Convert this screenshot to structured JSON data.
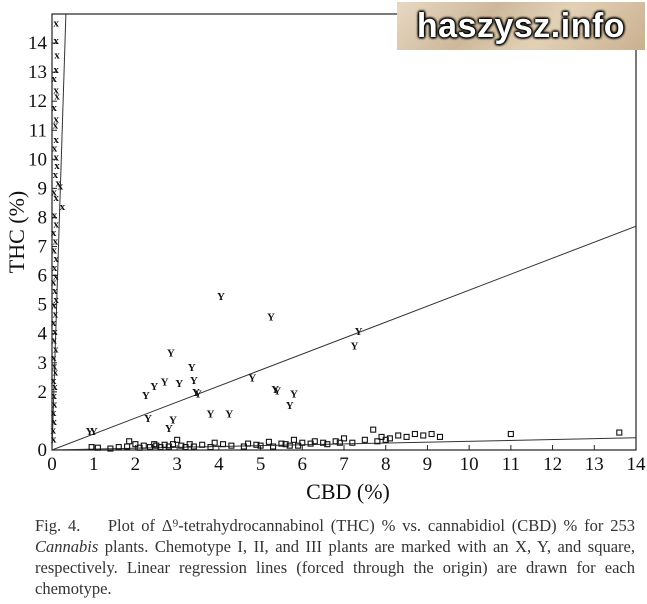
{
  "watermark": {
    "text": "haszysz.info"
  },
  "caption": {
    "label": "Fig. 4.",
    "part1": "Plot of Δ⁹-tetrahydrocannabinol (THC) % vs. cannabidiol (CBD) % for 253 ",
    "italic": "Cannabis",
    "part2": " plants. Chemotype I, II, and III plants are marked with an X, Y, and square, respectively. Linear regression lines (forced through the origin) are drawn for each chemotype."
  },
  "chart_data": {
    "type": "scatter",
    "xlabel": "CBD (%)",
    "ylabel": "THC (%)",
    "xlim": [
      0,
      14
    ],
    "ylim": [
      0,
      15
    ],
    "x_ticks": [
      "0",
      "1",
      "2",
      "3",
      "4",
      "5",
      "6",
      "7",
      "8",
      "9",
      "10",
      "11",
      "12",
      "13",
      "14"
    ],
    "y_ticks": [
      "0",
      "2",
      "3",
      "4",
      "5",
      "6",
      "7",
      "8",
      "9",
      "10",
      "11",
      "12",
      "13",
      "14"
    ],
    "grid": false,
    "series": [
      {
        "marker": "X",
        "slope": 45,
        "points": [
          [
            0.1,
            14.7
          ],
          [
            0.1,
            14.1
          ],
          [
            0.12,
            13.6
          ],
          [
            0.1,
            13.1
          ],
          [
            0.05,
            12.8
          ],
          [
            0.1,
            12.4
          ],
          [
            0.12,
            12.2
          ],
          [
            0.05,
            11.8
          ],
          [
            0.1,
            11.4
          ],
          [
            0.08,
            11.2
          ],
          [
            0.1,
            10.7
          ],
          [
            0.06,
            10.4
          ],
          [
            0.1,
            10.1
          ],
          [
            0.12,
            9.8
          ],
          [
            0.08,
            9.5
          ],
          [
            0.15,
            9.2
          ],
          [
            0.2,
            9.1
          ],
          [
            0.05,
            8.9
          ],
          [
            0.1,
            8.7
          ],
          [
            0.25,
            8.4
          ],
          [
            0.06,
            8.1
          ],
          [
            0.1,
            7.8
          ],
          [
            0.04,
            7.5
          ],
          [
            0.08,
            7.2
          ],
          [
            0.05,
            6.9
          ],
          [
            0.1,
            6.6
          ],
          [
            0.06,
            6.3
          ],
          [
            0.09,
            6.0
          ],
          [
            0.04,
            5.8
          ],
          [
            0.07,
            5.5
          ],
          [
            0.1,
            5.2
          ],
          [
            0.05,
            5.0
          ],
          [
            0.08,
            4.7
          ],
          [
            0.04,
            4.4
          ],
          [
            0.07,
            4.1
          ],
          [
            0.05,
            3.8
          ],
          [
            0.09,
            3.5
          ],
          [
            0.04,
            3.2
          ],
          [
            0.06,
            2.9
          ],
          [
            0.08,
            2.7
          ],
          [
            0.04,
            2.4
          ],
          [
            0.07,
            2.2
          ],
          [
            0.05,
            1.9
          ],
          [
            0.06,
            1.6
          ],
          [
            0.04,
            1.3
          ],
          [
            0.05,
            1.0
          ],
          [
            0.03,
            0.7
          ],
          [
            0.04,
            0.4
          ]
        ]
      },
      {
        "marker": "Y",
        "slope": 0.55,
        "points": [
          [
            0.9,
            0.65
          ],
          [
            1.0,
            0.65
          ],
          [
            2.25,
            1.9
          ],
          [
            2.3,
            1.1
          ],
          [
            2.45,
            2.2
          ],
          [
            2.7,
            2.35
          ],
          [
            2.8,
            0.75
          ],
          [
            2.85,
            3.35
          ],
          [
            2.9,
            1.05
          ],
          [
            3.05,
            2.3
          ],
          [
            3.35,
            2.85
          ],
          [
            3.4,
            2.4
          ],
          [
            3.45,
            2.0
          ],
          [
            3.5,
            1.95
          ],
          [
            3.8,
            1.25
          ],
          [
            4.05,
            5.3
          ],
          [
            4.25,
            1.25
          ],
          [
            4.8,
            2.5
          ],
          [
            5.25,
            4.6
          ],
          [
            5.35,
            2.1
          ],
          [
            5.4,
            2.05
          ],
          [
            5.7,
            1.55
          ],
          [
            5.8,
            1.95
          ],
          [
            7.25,
            3.6
          ],
          [
            7.35,
            4.1
          ]
        ]
      },
      {
        "marker": "square",
        "slope": 0.03,
        "points": [
          [
            0.95,
            0.1
          ],
          [
            1.1,
            0.08
          ],
          [
            1.4,
            0.05
          ],
          [
            1.6,
            0.1
          ],
          [
            1.8,
            0.12
          ],
          [
            1.85,
            0.3
          ],
          [
            2.0,
            0.2
          ],
          [
            2.1,
            0.08
          ],
          [
            2.2,
            0.15
          ],
          [
            2.35,
            0.1
          ],
          [
            2.45,
            0.2
          ],
          [
            2.5,
            0.15
          ],
          [
            2.6,
            0.1
          ],
          [
            2.7,
            0.18
          ],
          [
            2.8,
            0.12
          ],
          [
            2.9,
            0.2
          ],
          [
            3.0,
            0.35
          ],
          [
            3.1,
            0.15
          ],
          [
            3.2,
            0.1
          ],
          [
            3.3,
            0.2
          ],
          [
            3.4,
            0.12
          ],
          [
            3.6,
            0.18
          ],
          [
            3.8,
            0.1
          ],
          [
            3.9,
            0.25
          ],
          [
            4.1,
            0.2
          ],
          [
            4.3,
            0.15
          ],
          [
            4.6,
            0.12
          ],
          [
            4.7,
            0.22
          ],
          [
            4.9,
            0.18
          ],
          [
            5.0,
            0.15
          ],
          [
            5.2,
            0.28
          ],
          [
            5.3,
            0.12
          ],
          [
            5.5,
            0.22
          ],
          [
            5.6,
            0.2
          ],
          [
            5.7,
            0.15
          ],
          [
            5.8,
            0.35
          ],
          [
            5.9,
            0.15
          ],
          [
            6.0,
            0.25
          ],
          [
            6.2,
            0.22
          ],
          [
            6.3,
            0.3
          ],
          [
            6.5,
            0.25
          ],
          [
            6.6,
            0.2
          ],
          [
            6.8,
            0.3
          ],
          [
            6.9,
            0.25
          ],
          [
            7.0,
            0.4
          ],
          [
            7.2,
            0.25
          ],
          [
            7.5,
            0.35
          ],
          [
            7.7,
            0.7
          ],
          [
            7.8,
            0.3
          ],
          [
            7.9,
            0.45
          ],
          [
            8.0,
            0.35
          ],
          [
            8.1,
            0.4
          ],
          [
            8.3,
            0.5
          ],
          [
            8.5,
            0.45
          ],
          [
            8.7,
            0.55
          ],
          [
            8.9,
            0.5
          ],
          [
            9.1,
            0.55
          ],
          [
            9.3,
            0.45
          ],
          [
            11.0,
            0.55
          ],
          [
            13.6,
            0.6
          ]
        ]
      }
    ]
  }
}
